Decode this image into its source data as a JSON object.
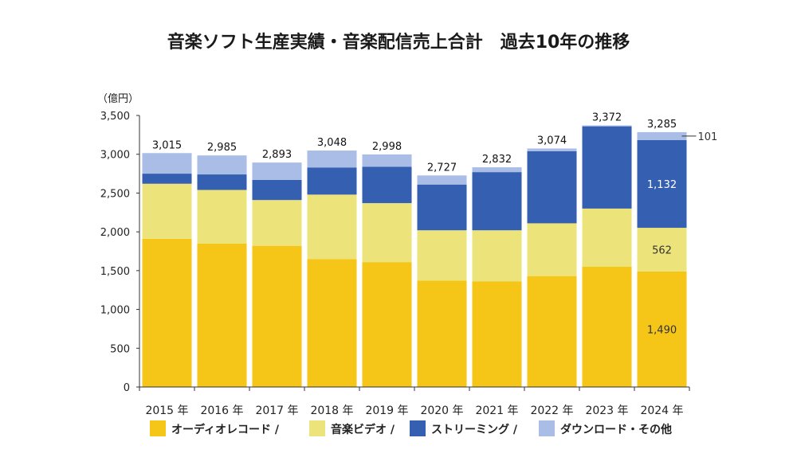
{
  "chart_data": {
    "type": "bar",
    "stacked": true,
    "title": "音楽ソフト生産実績・音楽配信売上合計　過去10年の推移",
    "unit_label": "（億円）",
    "ylim": [
      0,
      3500
    ],
    "yticks": [
      "0",
      "500",
      "1,000",
      "1,500",
      "2,000",
      "2,500",
      "3,000",
      "3,500"
    ],
    "ytick_values": [
      0,
      500,
      1000,
      1500,
      2000,
      2500,
      3000,
      3500
    ],
    "categories": [
      "2015 年",
      "2016 年",
      "2017 年",
      "2018 年",
      "2019 年",
      "2020 年",
      "2021 年",
      "2022 年",
      "2023 年",
      "2024 年"
    ],
    "totals": [
      "3,015",
      "2,985",
      "2,893",
      "3,048",
      "2,998",
      "2,727",
      "2,832",
      "3,074",
      "3,372",
      "3,285"
    ],
    "series": [
      {
        "name": "オーディオレコード /",
        "color": "#f5c518",
        "values": [
          1910,
          1850,
          1820,
          1650,
          1610,
          1370,
          1360,
          1430,
          1550,
          1490
        ]
      },
      {
        "name": "音楽ビデオ /",
        "color": "#ece47a",
        "values": [
          710,
          690,
          590,
          830,
          760,
          650,
          660,
          680,
          750,
          562
        ]
      },
      {
        "name": "ストリーミング /",
        "color": "#355fb0",
        "values": [
          130,
          200,
          260,
          350,
          470,
          590,
          750,
          930,
          1060,
          1132
        ]
      },
      {
        "name": "ダウンロード・その他",
        "color": "#a9bde6",
        "values": [
          265,
          245,
          223,
          218,
          158,
          117,
          62,
          34,
          12,
          101
        ]
      }
    ],
    "value_labels": [
      {
        "category": "2024 年",
        "series": "オーディオレコード /",
        "text": "1,490"
      },
      {
        "category": "2024 年",
        "series": "音楽ビデオ /",
        "text": "562"
      },
      {
        "category": "2024 年",
        "series": "ストリーミング /",
        "text": "1,132"
      },
      {
        "category": "2024 年",
        "series": "ダウンロード・その他",
        "text": "101"
      }
    ],
    "legend_position": "bottom"
  }
}
